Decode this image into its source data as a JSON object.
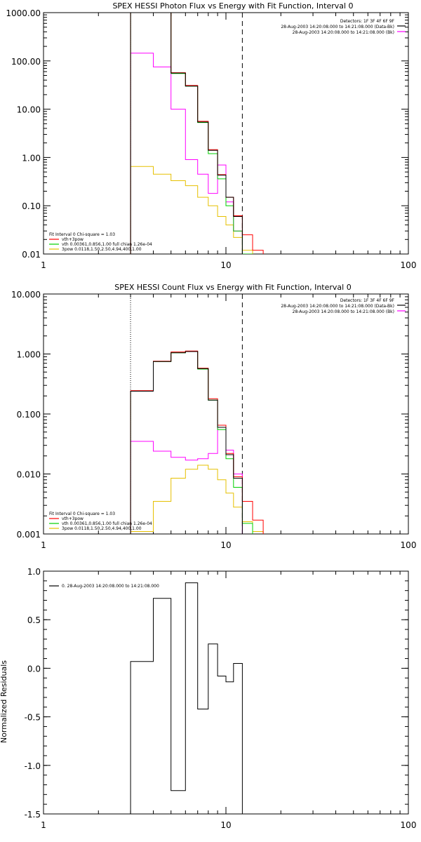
{
  "colors": {
    "observed": "#000000",
    "total": "#ff0000",
    "thermal": "#00d000",
    "nonthermal": "#ff00ff",
    "third": "#e6c000",
    "axis": "#000000"
  },
  "chart_data": [
    {
      "type": "line",
      "scale": "log-log",
      "title": "SPEX HESSI Photon Flux vs Energy with Fit Function, Interval 0",
      "xlabel": "",
      "ylabel": "",
      "xlim": [
        1,
        100
      ],
      "ylim": [
        0.01,
        1000
      ],
      "xticks": [
        {
          "v": 1,
          "label": "1"
        },
        {
          "v": 10,
          "label": "10"
        },
        {
          "v": 100,
          "label": "100"
        }
      ],
      "yticks": [
        {
          "v": 0.01,
          "label": "0.01"
        },
        {
          "v": 0.1,
          "label": "0.10"
        },
        {
          "v": 1,
          "label": "1.00"
        },
        {
          "v": 10,
          "label": "10.00"
        },
        {
          "v": 100,
          "label": "100.00"
        },
        {
          "v": 1000,
          "label": "1000.00"
        }
      ],
      "header_lines": [
        "Detectors: 1F 3F 4F 6F 9F",
        "28-Aug-2003 14:20:08.000 to 14:21:08.000 (Data-Bk)",
        "28-Aug-2003 14:20:08.000 to 14:21:08.000 (Bk)"
      ],
      "header_colors": [
        "",
        "observed",
        "nonthermal"
      ],
      "legend": {
        "title": "Fit Interval 0    Chi-square = 1.03",
        "items": [
          {
            "label": "vth+3pow",
            "color": "total"
          },
          {
            "label": "vth 0.00361,0.856,1.00  full chian 1.26e-04",
            "color": "thermal"
          },
          {
            "label": "3pow 0.0118,1.50,2.50,4.94,400,1.00",
            "color": "third"
          }
        ]
      },
      "vlines": [
        {
          "x": 3,
          "style": "dotted"
        },
        {
          "x": 12.3,
          "style": "dashed"
        }
      ],
      "edges": [
        3,
        4,
        5,
        6,
        7,
        8,
        9,
        10,
        11,
        12.3,
        14,
        16
      ],
      "series": [
        {
          "key": "observed",
          "values": [
            1000,
            1000,
            56,
            30,
            5.4,
            1.4,
            0.43,
            0.15,
            0.06
          ]
        },
        {
          "key": "total",
          "values": [
            1000,
            1000,
            57,
            31,
            5.6,
            1.45,
            0.44,
            0.15,
            0.062,
            0.025,
            0.012
          ]
        },
        {
          "key": "thermal",
          "values": [
            1000,
            1000,
            55,
            30,
            5.3,
            1.2,
            0.36,
            0.1,
            0.03,
            0.01
          ]
        },
        {
          "key": "nonthermal",
          "values": [
            145,
            75,
            10,
            0.9,
            0.45,
            0.18,
            0.7,
            0.12,
            0.03
          ]
        },
        {
          "key": "third",
          "values": [
            0.65,
            0.45,
            0.33,
            0.26,
            0.15,
            0.1,
            0.06,
            0.04,
            0.022,
            0.012
          ]
        }
      ]
    },
    {
      "type": "line",
      "scale": "log-log",
      "title": "SPEX HESSI Count Flux vs Energy with Fit Function, Interval 0",
      "xlabel": "",
      "ylabel": "",
      "xlim": [
        1,
        100
      ],
      "ylim": [
        0.001,
        10
      ],
      "xticks": [
        {
          "v": 1,
          "label": "1"
        },
        {
          "v": 10,
          "label": "10"
        },
        {
          "v": 100,
          "label": "100"
        }
      ],
      "yticks": [
        {
          "v": 0.001,
          "label": "0.001"
        },
        {
          "v": 0.01,
          "label": "0.010"
        },
        {
          "v": 0.1,
          "label": "0.100"
        },
        {
          "v": 1,
          "label": "1.000"
        },
        {
          "v": 10,
          "label": "10.000"
        }
      ],
      "header_lines": [
        "Detectors: 1F 3F 4F 6F 9F",
        "28-Aug-2003 14:20:08.000 to 14:21:08.000 (Data-Bk)",
        "28-Aug-2003 14:20:08.000 to 14:21:08.000 (Bk)"
      ],
      "header_colors": [
        "",
        "observed",
        "nonthermal"
      ],
      "legend": {
        "title": "Fit Interval 0    Chi-square = 1.03",
        "items": [
          {
            "label": "vth+3pow",
            "color": "total"
          },
          {
            "label": "vth 0.00361,0.856,1.00  full chian 1.26e-04",
            "color": "thermal"
          },
          {
            "label": "3pow 0.0118,1.50,2.50,4.94,400,1.00",
            "color": "third"
          }
        ]
      },
      "vlines": [
        {
          "x": 3,
          "style": "dotted"
        },
        {
          "x": 12.3,
          "style": "dashed"
        }
      ],
      "edges": [
        3,
        4,
        5,
        6,
        7,
        8,
        9,
        10,
        11,
        12.3,
        14,
        16
      ],
      "series": [
        {
          "key": "observed",
          "values": [
            0.24,
            0.75,
            1.05,
            1.1,
            0.57,
            0.17,
            0.06,
            0.021,
            0.0085
          ]
        },
        {
          "key": "total",
          "values": [
            0.245,
            0.76,
            1.08,
            1.12,
            0.58,
            0.18,
            0.065,
            0.022,
            0.009,
            0.0035,
            0.0017
          ]
        },
        {
          "key": "thermal",
          "values": [
            0.24,
            0.75,
            1.05,
            1.1,
            0.56,
            0.17,
            0.055,
            0.018,
            0.006,
            0.0015
          ]
        },
        {
          "key": "nonthermal",
          "values": [
            0.035,
            0.024,
            0.019,
            0.017,
            0.018,
            0.022,
            0.06,
            0.025,
            0.01
          ]
        },
        {
          "key": "third",
          "values": [
            0.0011,
            0.0035,
            0.0085,
            0.012,
            0.014,
            0.012,
            0.008,
            0.0048,
            0.0028,
            0.0016,
            0.0011
          ]
        }
      ]
    },
    {
      "type": "line",
      "scale": "log-linear",
      "title": "",
      "xlabel": "",
      "ylabel": "Normalized Residuals",
      "xlim": [
        1,
        100
      ],
      "ylim": [
        -1.5,
        1.0
      ],
      "xticks": [
        {
          "v": 1,
          "label": "1"
        },
        {
          "v": 10,
          "label": "10"
        },
        {
          "v": 100,
          "label": "100"
        }
      ],
      "yticks": [
        {
          "v": -1.5,
          "label": "-1.5"
        },
        {
          "v": -1.0,
          "label": "-1.0"
        },
        {
          "v": -0.5,
          "label": "-0.5"
        },
        {
          "v": 0.0,
          "label": "0.0"
        },
        {
          "v": 0.5,
          "label": "0.5"
        },
        {
          "v": 1.0,
          "label": "1.0"
        }
      ],
      "legend": {
        "title": "",
        "items": [
          {
            "label": "0. 28-Aug-2003 14:20:08.000 to 14:21:08.000",
            "color": "observed"
          }
        ]
      },
      "edges": [
        3,
        4,
        5,
        6,
        7,
        8,
        9,
        10,
        11,
        12.3
      ],
      "series": [
        {
          "key": "observed",
          "values": [
            0.07,
            0.72,
            -1.26,
            0.88,
            -0.42,
            0.25,
            -0.08,
            -0.14,
            0.05
          ]
        }
      ]
    }
  ]
}
